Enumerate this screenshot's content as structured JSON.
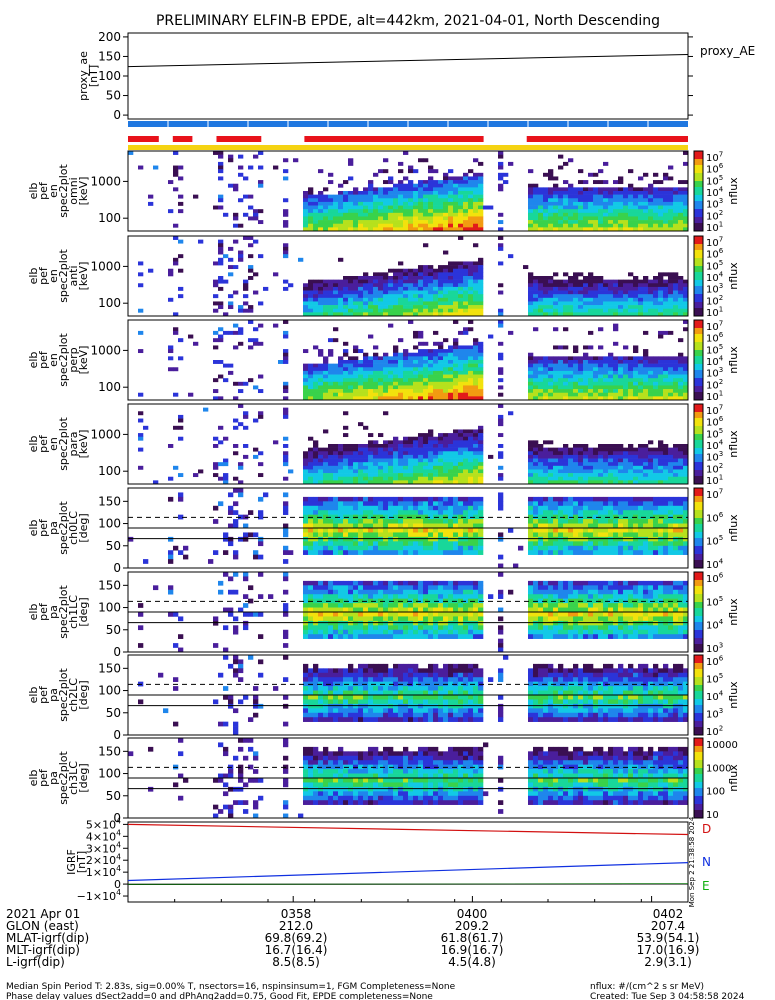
{
  "title": "PRELIMINARY ELFIN-B EPDE, alt=442km, 2021-04-01, North Descending",
  "colors": {
    "bar_blue": "#1f77e0",
    "bar_red": "#e8121b",
    "bar_yellow": "#f5d312",
    "trace_black": "#000000",
    "trace_red": "#d21010",
    "trace_blue": "#1030e0",
    "trace_green": "#10b010"
  },
  "chart_data": [
    {
      "panel": "proxy_ae",
      "type": "line",
      "ylabel": [
        "proxy_ae",
        "[nT]"
      ],
      "yticks": [
        "200",
        "150",
        "100",
        "50",
        "0"
      ],
      "ylim": [
        -10,
        210
      ],
      "legend": "proxy_AE",
      "x_frac": [
        0,
        1
      ],
      "values": [
        124,
        155
      ]
    },
    {
      "panel": "flag_bars",
      "type": "bar",
      "series": [
        {
          "name": "blue",
          "segments": [
            [
              0,
              1
            ]
          ]
        },
        {
          "name": "red",
          "segments": [
            [
              0,
              0.055
            ],
            [
              0.08,
              0.115
            ],
            [
              0.158,
              0.238
            ],
            [
              0.315,
              0.635
            ],
            [
              0.712,
              1.0
            ]
          ]
        },
        {
          "name": "yellow",
          "segments": [
            [
              0,
              1
            ]
          ]
        }
      ]
    },
    {
      "panel": "pef_en_spec2plot_omni",
      "type": "heatmap",
      "ylabel": [
        "elb",
        "pef",
        "en",
        "spec2plot",
        "omni",
        "[keV]"
      ],
      "yticks": [
        "1000",
        "100"
      ],
      "colorbar": {
        "label": "nflux",
        "ticks": [
          "10^7",
          "10^6",
          "10^5",
          "10^4",
          "10^3",
          "10^2",
          "10^1"
        ]
      }
    },
    {
      "panel": "pef_en_spec2plot_anti",
      "type": "heatmap",
      "ylabel": [
        "elb",
        "pef",
        "en",
        "spec2plot",
        "anti",
        "[keV]"
      ],
      "yticks": [
        "1000",
        "100"
      ],
      "colorbar": {
        "label": "nflux",
        "ticks": [
          "10^7",
          "10^6",
          "10^5",
          "10^4",
          "10^3",
          "10^2",
          "10^1"
        ]
      }
    },
    {
      "panel": "pef_en_spec2plot_perp",
      "type": "heatmap",
      "ylabel": [
        "elb",
        "pef",
        "en",
        "spec2plot",
        "perp",
        "[keV]"
      ],
      "yticks": [
        "1000",
        "100"
      ],
      "colorbar": {
        "label": "nflux",
        "ticks": [
          "10^7",
          "10^6",
          "10^5",
          "10^4",
          "10^3",
          "10^2",
          "10^1"
        ]
      }
    },
    {
      "panel": "pef_en_spec2plot_para",
      "type": "heatmap",
      "ylabel": [
        "elb",
        "pef",
        "en",
        "spec2plot",
        "para",
        "[keV]"
      ],
      "yticks": [
        "1000",
        "100"
      ],
      "colorbar": {
        "label": "nflux",
        "ticks": [
          "10^7",
          "10^6",
          "10^5",
          "10^4",
          "10^3",
          "10^2",
          "10^1"
        ]
      }
    },
    {
      "panel": "pef_pa_spec2plot_ch0LC",
      "type": "heatmap",
      "ylabel": [
        "elb",
        "pef",
        "pa",
        "spec2plot",
        "ch0LC",
        "[deg]"
      ],
      "yticks": [
        "150",
        "100",
        "50",
        "0"
      ],
      "colorbar": {
        "label": "nflux",
        "ticks": [
          "10^7",
          "10^6",
          "10^5",
          "10^4"
        ]
      }
    },
    {
      "panel": "pef_pa_spec2plot_ch1LC",
      "type": "heatmap",
      "ylabel": [
        "elb",
        "pef",
        "pa",
        "spec2plot",
        "ch1LC",
        "[deg]"
      ],
      "yticks": [
        "150",
        "100",
        "50",
        "0"
      ],
      "colorbar": {
        "label": "nflux",
        "ticks": [
          "10^6",
          "10^5",
          "10^4",
          "10^3"
        ]
      }
    },
    {
      "panel": "pef_pa_spec2plot_ch2LC",
      "type": "heatmap",
      "ylabel": [
        "elb",
        "pef",
        "pa",
        "spec2plot",
        "ch2LC",
        "[deg]"
      ],
      "yticks": [
        "150",
        "100",
        "50",
        "0"
      ],
      "colorbar": {
        "label": "nflux",
        "ticks": [
          "10^6",
          "10^5",
          "10^4",
          "10^3",
          "10^2"
        ]
      }
    },
    {
      "panel": "pef_pa_spec2plot_ch3LC",
      "type": "heatmap",
      "ylabel": [
        "elb",
        "pef",
        "pa",
        "spec2plot",
        "ch3LC",
        "[deg]"
      ],
      "yticks": [
        "150",
        "100",
        "50",
        "0"
      ],
      "colorbar": {
        "label": "nflux",
        "ticks": [
          "10000",
          "1000",
          "100",
          "10"
        ]
      }
    },
    {
      "panel": "igrf",
      "type": "line",
      "ylabel": [
        "IGRF",
        "[nT]"
      ],
      "yticks": [
        "5×10^4",
        "4×10^4",
        "3×10^4",
        "2×10^4",
        "1×10^4",
        "0",
        "−1×10^4"
      ],
      "ylim": [
        -15000,
        52000
      ],
      "series": [
        {
          "name": "D",
          "x_frac": [
            0,
            1
          ],
          "values": [
            50000,
            41500
          ],
          "color": "trace_red"
        },
        {
          "name": "N",
          "x_frac": [
            0,
            1
          ],
          "values": [
            3000,
            18000
          ],
          "color": "trace_blue"
        },
        {
          "name": "E",
          "x_frac": [
            0,
            1
          ],
          "values": [
            -300,
            200
          ],
          "color": "trace_green"
        }
      ],
      "side_label": "Mon Sep  2 21:38:58 2024"
    }
  ],
  "ephemeris": {
    "rows": [
      {
        "label": "2021 Apr 01",
        "v1": "0358",
        "v2": "0400",
        "v3": "0402"
      },
      {
        "label": "GLON (east)",
        "v1": "212.0",
        "v2": "209.2",
        "v3": "207.4"
      },
      {
        "label": "MLAT-igrf(dip)",
        "v1": "69.8(69.2)",
        "v2": "61.8(61.7)",
        "v3": "53.9(54.1)"
      },
      {
        "label": "MLT-igrf(dip)",
        "v1": "16.7(16.4)",
        "v2": "16.9(16.7)",
        "v3": "17.0(16.9)"
      },
      {
        "label": "L-igrf(dip)",
        "v1": "8.5(8.5)",
        "v2": "4.5(4.8)",
        "v3": "2.9(3.1)"
      }
    ]
  },
  "footer": {
    "line1": "Median Spin Period T: 2.83s, sig=0.00% T, nsectors=16, nspinsinsum=1, FGM Completeness=None",
    "line2": "Phase delay values dSect2add=0 and dPhAng2add=0.75, Good Fit, EPDE completeness=None",
    "units": "nflux: #/(cm^2 s sr MeV)",
    "created": "Created: Tue Sep  3 04:58:58 2024"
  }
}
